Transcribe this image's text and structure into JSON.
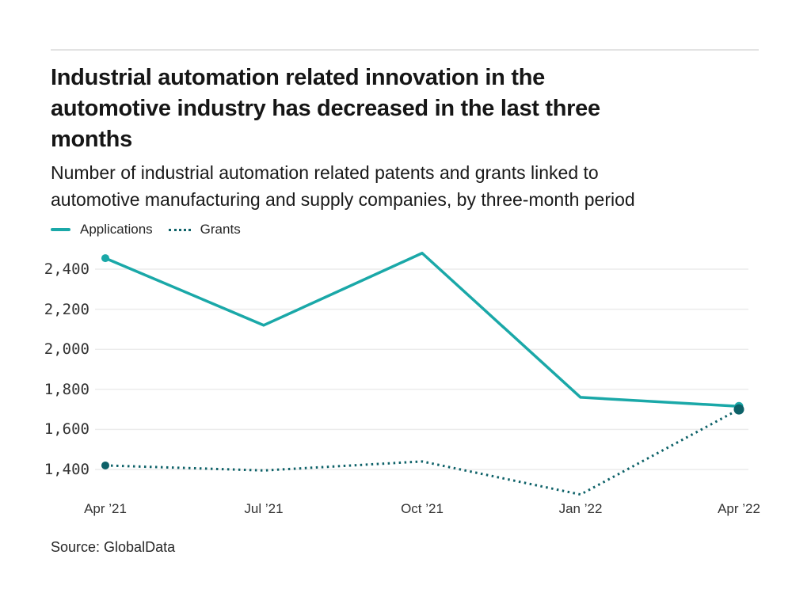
{
  "header": {
    "title_lines": [
      "Industrial automation related innovation in the",
      "automotive industry has decreased in the last three",
      "months"
    ],
    "subtitle_lines": [
      "Number of industrial automation related patents and grants linked to",
      "automotive manufacturing and supply companies, by three-month period"
    ]
  },
  "chart_data": {
    "type": "line",
    "title": "Industrial automation related innovation in the automotive industry has decreased in the last three months",
    "subtitle": "Number of industrial automation related patents and grants linked to automotive manufacturing and supply companies, by three-month period",
    "categories": [
      "Apr ’21",
      "Jul ’21",
      "Oct ’21",
      "Jan ’22",
      "Apr ’22"
    ],
    "series": [
      {
        "name": "Applications",
        "style": "solid",
        "color": "#1aa8a8",
        "values": [
          2455,
          2120,
          2480,
          1760,
          1715
        ],
        "markers": "first-last"
      },
      {
        "name": "Grants",
        "style": "dotted",
        "color": "#0d6168",
        "values": [
          1420,
          1395,
          1440,
          1275,
          1700
        ],
        "markers": "first-last"
      }
    ],
    "yticks": [
      "2,400",
      "2,200",
      "2,000",
      "1,800",
      "1,600",
      "1,400"
    ],
    "ytick_values": [
      2400,
      2200,
      2000,
      1800,
      1600,
      1400
    ],
    "ylim": [
      1400,
      2400
    ],
    "xlabel": "",
    "ylabel": "",
    "grid": "horizontal",
    "gridline_color": "#ececec",
    "legend_position": "top-left"
  },
  "footer": {
    "source": "Source: GlobalData"
  }
}
